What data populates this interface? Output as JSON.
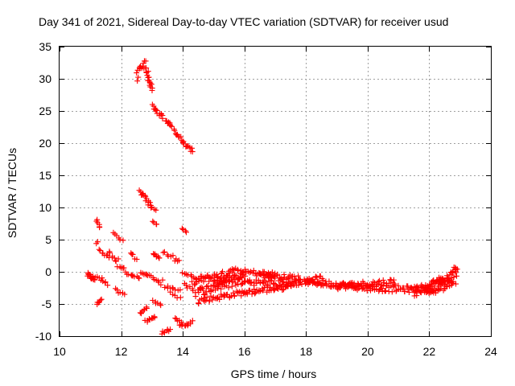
{
  "chart_data": {
    "type": "scatter",
    "title": "Day 341 of 2021, Sidereal Day-to-day VTEC variation (SDTVAR) for receiver usud",
    "xlabel": "GPS time / hours",
    "ylabel": "SDTVAR / TECUs",
    "xlim": [
      10,
      24
    ],
    "ylim": [
      -10,
      35
    ],
    "xticks": [
      "10",
      "12",
      "14",
      "16",
      "18",
      "20",
      "22",
      "24"
    ],
    "yticks": [
      "-10",
      "-5",
      "0",
      "5",
      "10",
      "15",
      "20",
      "25",
      "30",
      "35"
    ],
    "grid": true,
    "marker": "plus",
    "series": [
      {
        "name": "SDTVAR",
        "color": "#ff0000",
        "segments": [
          {
            "x_start": 10.9,
            "x_end": 11.15,
            "y_start": -0.5,
            "y_end": -1.2,
            "count": 15,
            "spread": 0.8
          },
          {
            "x_start": 11.2,
            "x_end": 11.3,
            "y_start": 8.2,
            "y_end": 6.8,
            "count": 6,
            "spread": 0.3
          },
          {
            "x_start": 11.2,
            "x_end": 11.35,
            "y_start": -5.0,
            "y_end": -4.2,
            "count": 6,
            "spread": 0.3
          },
          {
            "x_start": 11.2,
            "x_end": 11.6,
            "y_start": 4.5,
            "y_end": 2.0,
            "count": 10,
            "spread": 1.0
          },
          {
            "x_start": 11.25,
            "x_end": 11.55,
            "y_start": -0.8,
            "y_end": -2.0,
            "count": 8,
            "spread": 0.8
          },
          {
            "x_start": 11.6,
            "x_end": 11.9,
            "y_start": 3.0,
            "y_end": 1.0,
            "count": 8,
            "spread": 0.8
          },
          {
            "x_start": 11.75,
            "x_end": 12.05,
            "y_start": 6.0,
            "y_end": 4.8,
            "count": 6,
            "spread": 0.3
          },
          {
            "x_start": 11.8,
            "x_end": 12.1,
            "y_start": -2.8,
            "y_end": -3.5,
            "count": 6,
            "spread": 0.4
          },
          {
            "x_start": 11.9,
            "x_end": 12.35,
            "y_start": 1.5,
            "y_end": -1.0,
            "count": 10,
            "spread": 1.2
          },
          {
            "x_start": 12.3,
            "x_end": 12.5,
            "y_start": 3.0,
            "y_end": 2.0,
            "count": 5,
            "spread": 0.5
          },
          {
            "x_start": 12.4,
            "x_end": 12.6,
            "y_start": -0.5,
            "y_end": -1.0,
            "count": 5,
            "spread": 0.3
          },
          {
            "x_start": 12.5,
            "x_end": 12.8,
            "y_start": 30.0,
            "y_end": 33.0,
            "count": 14,
            "spread": 1.8
          },
          {
            "x_start": 12.8,
            "x_end": 13.0,
            "y_start": 31.5,
            "y_end": 28.0,
            "count": 16,
            "spread": 1.4
          },
          {
            "x_start": 12.6,
            "x_end": 12.95,
            "y_start": 12.5,
            "y_end": 10.5,
            "count": 14,
            "spread": 0.6
          },
          {
            "x_start": 12.6,
            "x_end": 12.85,
            "y_start": -6.5,
            "y_end": -5.5,
            "count": 8,
            "spread": 0.4
          },
          {
            "x_start": 12.65,
            "x_end": 12.95,
            "y_start": -0.2,
            "y_end": -0.6,
            "count": 8,
            "spread": 0.2
          },
          {
            "x_start": 12.8,
            "x_end": 13.1,
            "y_start": -7.8,
            "y_end": -7.0,
            "count": 10,
            "spread": 0.5
          },
          {
            "x_start": 12.9,
            "x_end": 13.1,
            "y_start": 10.5,
            "y_end": 9.5,
            "count": 6,
            "spread": 0.3
          },
          {
            "x_start": 13.0,
            "x_end": 13.35,
            "y_start": 25.8,
            "y_end": 24.0,
            "count": 14,
            "spread": 0.6
          },
          {
            "x_start": 13.05,
            "x_end": 13.25,
            "y_start": 2.8,
            "y_end": 2.2,
            "count": 8,
            "spread": 0.3
          },
          {
            "x_start": 13.05,
            "x_end": 13.15,
            "y_start": 7.9,
            "y_end": 7.3,
            "count": 4,
            "spread": 0.2
          },
          {
            "x_start": 13.05,
            "x_end": 13.3,
            "y_start": -4.5,
            "y_end": -5.2,
            "count": 6,
            "spread": 0.3
          },
          {
            "x_start": 13.05,
            "x_end": 13.25,
            "y_start": -1.0,
            "y_end": -1.5,
            "count": 5,
            "spread": 0.3
          },
          {
            "x_start": 13.3,
            "x_end": 13.6,
            "y_start": -9.5,
            "y_end": -9.0,
            "count": 8,
            "spread": 0.4
          },
          {
            "x_start": 13.45,
            "x_end": 13.65,
            "y_start": 23.5,
            "y_end": 22.6,
            "count": 8,
            "spread": 0.4
          },
          {
            "x_start": 13.35,
            "x_end": 13.9,
            "y_start": 3.0,
            "y_end": 1.5,
            "count": 10,
            "spread": 0.8
          },
          {
            "x_start": 13.3,
            "x_end": 13.9,
            "y_start": -1.5,
            "y_end": -3.0,
            "count": 10,
            "spread": 1.2
          },
          {
            "x_start": 13.5,
            "x_end": 13.9,
            "y_start": -2.8,
            "y_end": -4.0,
            "count": 6,
            "spread": 0.6
          },
          {
            "x_start": 13.7,
            "x_end": 14.0,
            "y_start": 22.0,
            "y_end": 20.5,
            "count": 10,
            "spread": 0.5
          },
          {
            "x_start": 13.75,
            "x_end": 13.95,
            "y_start": -7.0,
            "y_end": -8.0,
            "count": 5,
            "spread": 0.4
          },
          {
            "x_start": 13.9,
            "x_end": 14.3,
            "y_start": -8.5,
            "y_end": -7.8,
            "count": 12,
            "spread": 0.6
          },
          {
            "x_start": 14.0,
            "x_end": 14.3,
            "y_start": 20.0,
            "y_end": 18.8,
            "count": 12,
            "spread": 0.6
          },
          {
            "x_start": 14.0,
            "x_end": 14.1,
            "y_start": 6.8,
            "y_end": 6.2,
            "count": 4,
            "spread": 0.2
          },
          {
            "x_start": 14.0,
            "x_end": 14.3,
            "y_start": -0.2,
            "y_end": -0.6,
            "count": 6,
            "spread": 0.3
          },
          {
            "x_start": 14.05,
            "x_end": 14.35,
            "y_start": -2.0,
            "y_end": -3.0,
            "count": 6,
            "spread": 0.6
          },
          {
            "x_start": 14.3,
            "x_end": 15.5,
            "y_start": -1.5,
            "y_end": -0.3,
            "count": 46,
            "spread": 1.2
          },
          {
            "x_start": 14.4,
            "x_end": 16.0,
            "y_start": -3.2,
            "y_end": -1.2,
            "count": 50,
            "spread": 1.4
          },
          {
            "x_start": 14.5,
            "x_end": 16.0,
            "y_start": -4.5,
            "y_end": -3.2,
            "count": 40,
            "spread": 0.9
          },
          {
            "x_start": 15.0,
            "x_end": 16.0,
            "y_start": -1.8,
            "y_end": -0.5,
            "count": 30,
            "spread": 0.9
          },
          {
            "x_start": 15.5,
            "x_end": 17.0,
            "y_start": 0.2,
            "y_end": -0.5,
            "count": 40,
            "spread": 0.9
          },
          {
            "x_start": 16.0,
            "x_end": 17.6,
            "y_start": -1.5,
            "y_end": -2.0,
            "count": 40,
            "spread": 1.0
          },
          {
            "x_start": 16.0,
            "x_end": 17.3,
            "y_start": -3.2,
            "y_end": -2.4,
            "count": 36,
            "spread": 0.9
          },
          {
            "x_start": 16.5,
            "x_end": 17.8,
            "y_start": -0.5,
            "y_end": -1.0,
            "count": 36,
            "spread": 0.8
          },
          {
            "x_start": 17.3,
            "x_end": 18.5,
            "y_start": -2.0,
            "y_end": -1.0,
            "count": 36,
            "spread": 0.9
          },
          {
            "x_start": 18.0,
            "x_end": 20.0,
            "y_start": -1.5,
            "y_end": -2.5,
            "count": 70,
            "spread": 1.0
          },
          {
            "x_start": 19.0,
            "x_end": 20.9,
            "y_start": -2.3,
            "y_end": -1.5,
            "count": 50,
            "spread": 1.0
          },
          {
            "x_start": 20.0,
            "x_end": 22.0,
            "y_start": -2.5,
            "y_end": -2.8,
            "count": 60,
            "spread": 1.0
          },
          {
            "x_start": 21.5,
            "x_end": 22.8,
            "y_start": -3.0,
            "y_end": -1.5,
            "count": 60,
            "spread": 1.6
          },
          {
            "x_start": 22.0,
            "x_end": 22.9,
            "y_start": -2.8,
            "y_end": -0.6,
            "count": 50,
            "spread": 2.6
          },
          {
            "x_start": 22.8,
            "x_end": 22.9,
            "y_start": 0.8,
            "y_end": 0.4,
            "count": 4,
            "spread": 0.2
          }
        ]
      }
    ]
  }
}
